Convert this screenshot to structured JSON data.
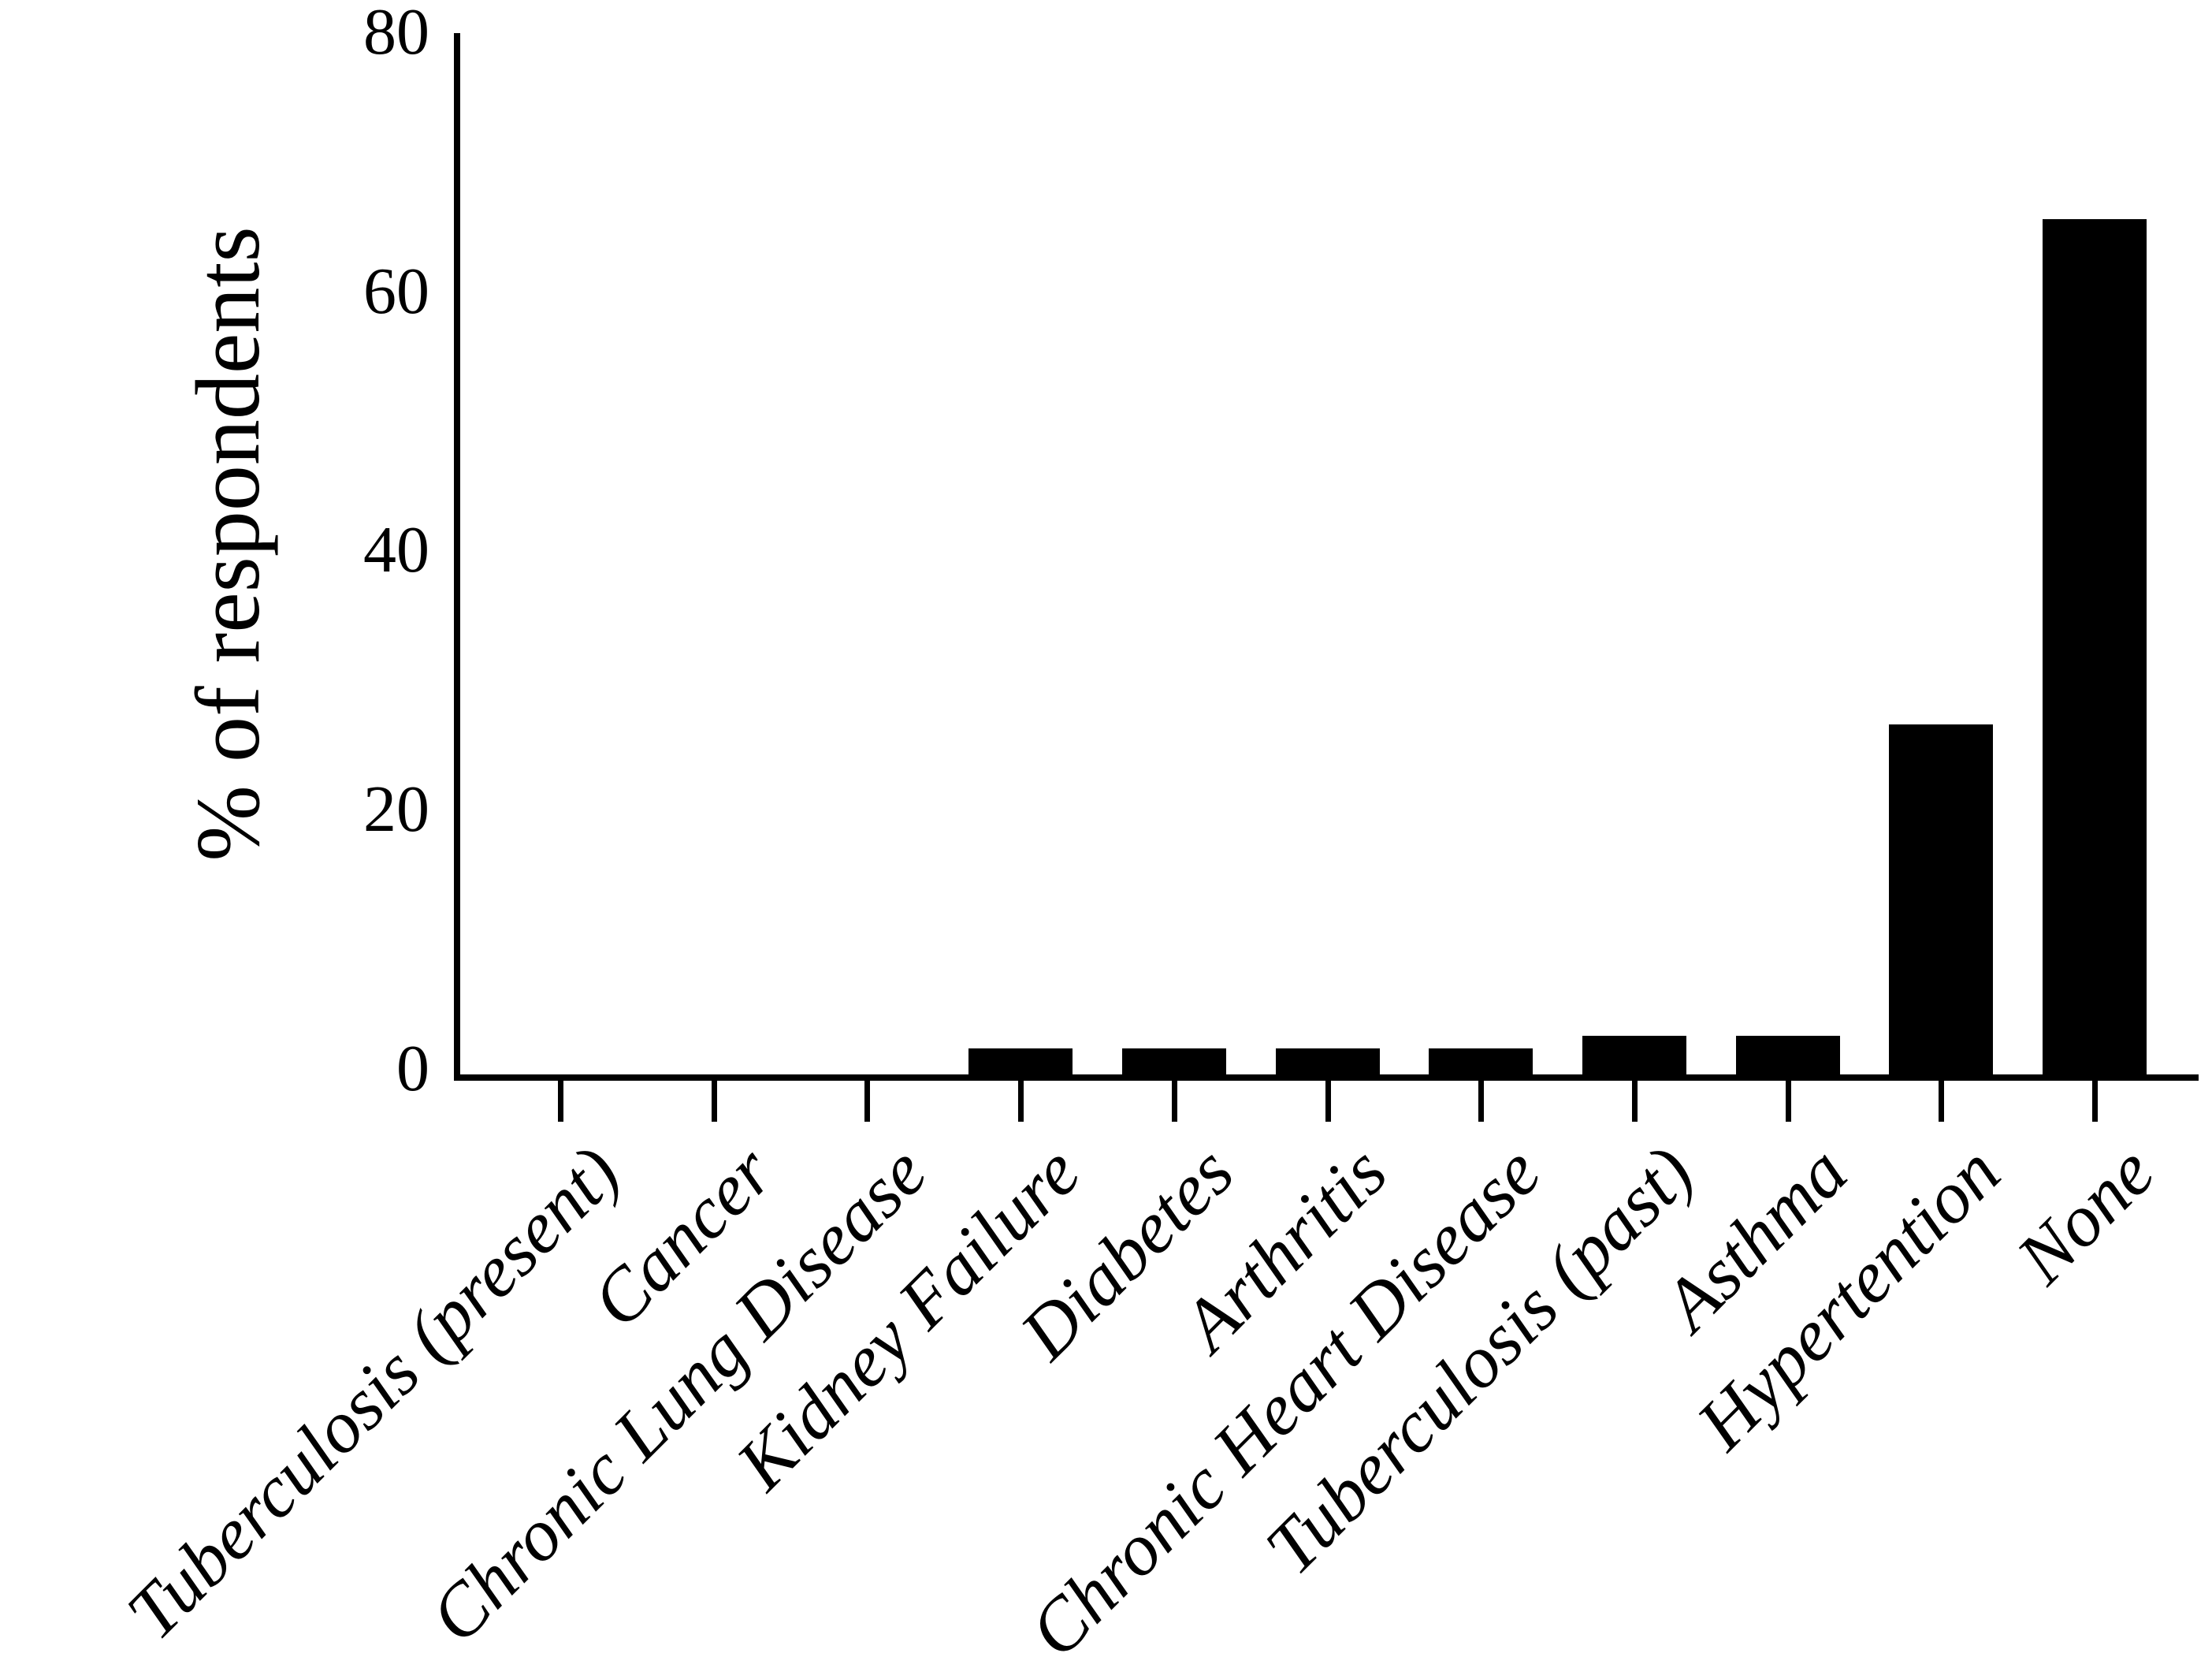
{
  "figure": {
    "background_color": "#ffffff",
    "text_color": "#000000"
  },
  "chart_data": {
    "type": "bar",
    "title": "",
    "xlabel": "",
    "ylabel": "% of respondents",
    "categories": [
      "Tuberculosis (present)",
      "Cancer",
      "Chronic Lung Disease",
      "Kidney Failure",
      "Diabetes",
      "Arthritis",
      "Chronic Heart Disease",
      "Tuberculosis (past)",
      "Asthma",
      "Hypertention",
      "None"
    ],
    "values": [
      0,
      0,
      0,
      2,
      2,
      2,
      2,
      3,
      3,
      27,
      66
    ],
    "yticks": [
      0,
      20,
      40,
      60,
      80
    ],
    "ylim": [
      0,
      80
    ],
    "bar_color": "#000000",
    "axis_color": "#000000",
    "grid": false,
    "legend": null,
    "x_tick_label_rotation_deg": -45
  }
}
